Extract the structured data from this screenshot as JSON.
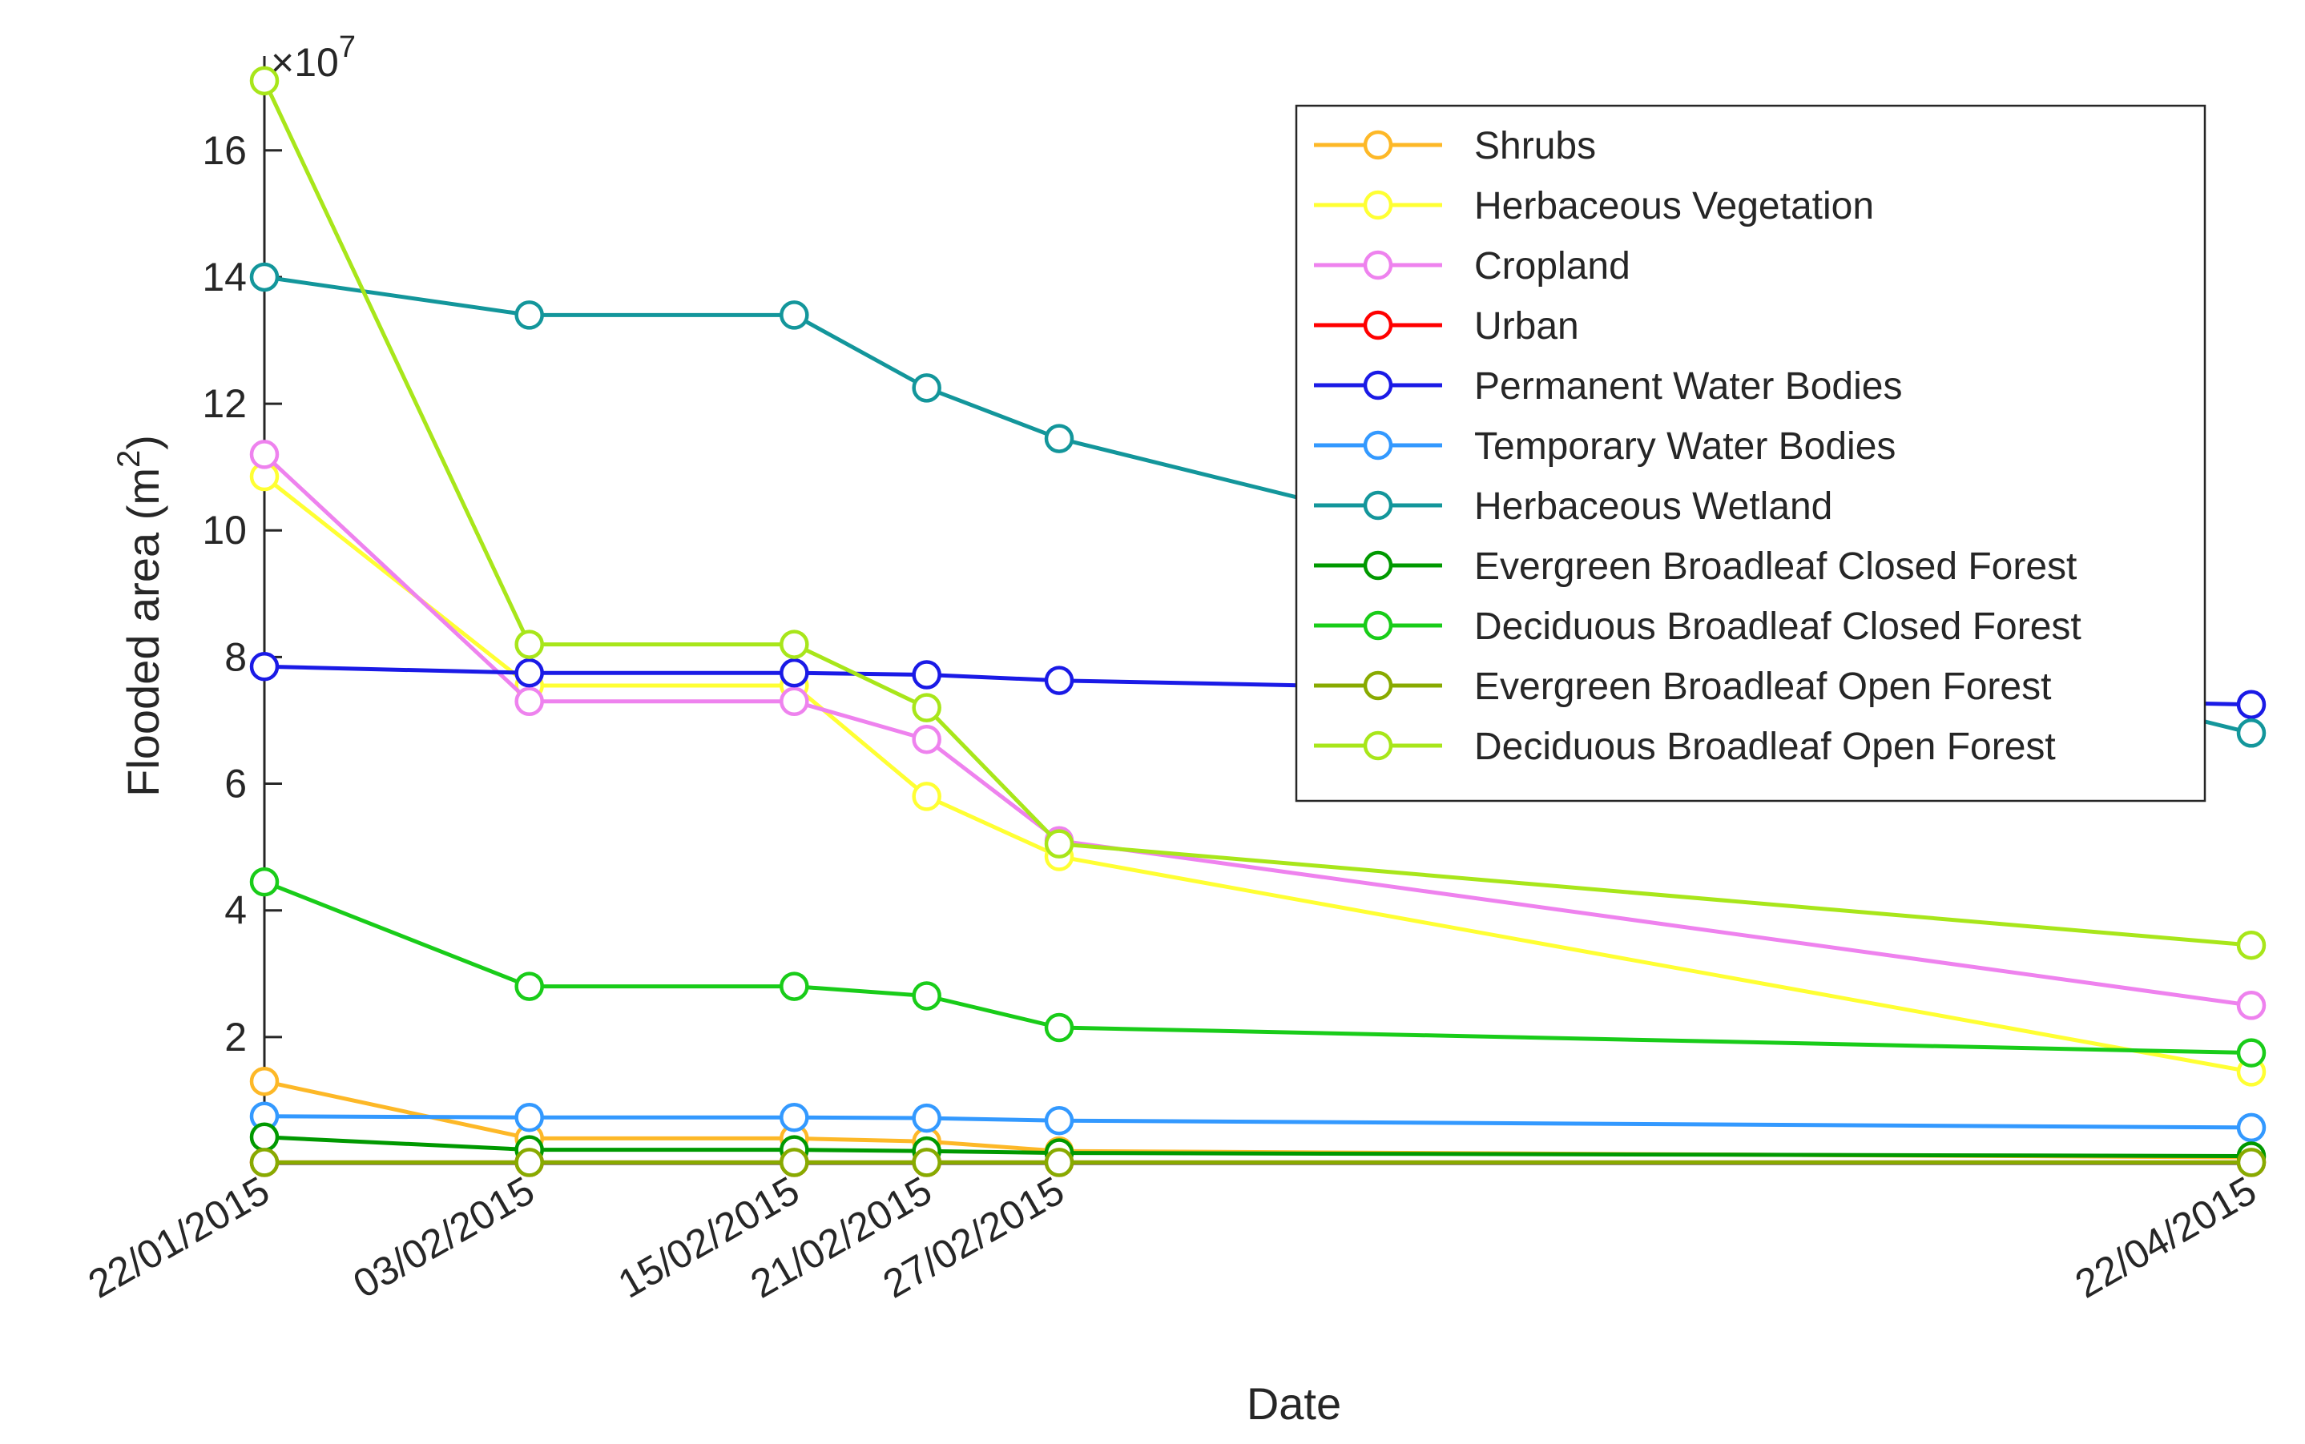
{
  "chart_data": {
    "type": "line",
    "title": "",
    "xlabel": "Date",
    "ylabel": "Flooded area (m²)",
    "ylabel_base": "Flooded area (m",
    "ylabel_sup": "2",
    "ylabel_close": ")",
    "y_multiplier": {
      "prefix": "×10",
      "exponent": "7"
    },
    "x_data_units": "days since 22/01/2015",
    "x": [
      0,
      12,
      24,
      30,
      36,
      90
    ],
    "x_tick_labels": [
      "22/01/2015",
      "03/02/2015",
      "15/02/2015",
      "21/02/2015",
      "27/02/2015",
      "22/04/2015"
    ],
    "xlim": [
      0,
      90
    ],
    "ylim": [
      0,
      17.3
    ],
    "y_ticks": [
      2,
      4,
      6,
      8,
      10,
      12,
      14,
      16
    ],
    "y_tick_labels": [
      "2",
      "4",
      "6",
      "8",
      "10",
      "12",
      "14",
      "16"
    ],
    "y_units": "×10^7 m²",
    "grid": false,
    "legend_position": "top-right",
    "series": [
      {
        "name": "Shrubs",
        "color": "#FDB827",
        "values": [
          1.3,
          0.4,
          0.4,
          0.35,
          0.2,
          0.1
        ]
      },
      {
        "name": "Herbaceous Vegetation",
        "color": "#FFFF33",
        "values": [
          10.85,
          7.55,
          7.55,
          5.8,
          4.85,
          1.45
        ]
      },
      {
        "name": "Cropland",
        "color": "#EE82EE",
        "values": [
          11.2,
          7.3,
          7.3,
          6.7,
          5.1,
          2.5
        ]
      },
      {
        "name": "Urban",
        "color": "#FF0000",
        "values": [
          0.02,
          0.02,
          0.02,
          0.02,
          0.02,
          0.02
        ]
      },
      {
        "name": "Permanent Water Bodies",
        "color": "#1A1AE6",
        "values": [
          7.85,
          7.75,
          7.75,
          7.72,
          7.63,
          7.25
        ]
      },
      {
        "name": "Temporary Water Bodies",
        "color": "#3399FF",
        "values": [
          0.75,
          0.73,
          0.73,
          0.72,
          0.68,
          0.57
        ]
      },
      {
        "name": "Herbaceous Wetland",
        "color": "#13969B",
        "values": [
          14.0,
          13.4,
          13.4,
          12.25,
          11.45,
          6.8
        ]
      },
      {
        "name": "Evergreen Broadleaf Closed Forest",
        "color": "#009900",
        "values": [
          0.42,
          0.22,
          0.22,
          0.2,
          0.17,
          0.12
        ]
      },
      {
        "name": "Deciduous Broadleaf Closed Forest",
        "color": "#19CC19",
        "values": [
          4.45,
          2.8,
          2.8,
          2.65,
          2.15,
          1.75
        ]
      },
      {
        "name": "Evergreen Broadleaf Open Forest",
        "color": "#88AA00",
        "values": [
          0.02,
          0.02,
          0.02,
          0.02,
          0.02,
          0.02
        ]
      },
      {
        "name": "Deciduous Broadleaf Open Forest",
        "color": "#A8E61A",
        "values": [
          17.1,
          8.2,
          8.2,
          7.2,
          5.05,
          3.45
        ]
      }
    ]
  }
}
